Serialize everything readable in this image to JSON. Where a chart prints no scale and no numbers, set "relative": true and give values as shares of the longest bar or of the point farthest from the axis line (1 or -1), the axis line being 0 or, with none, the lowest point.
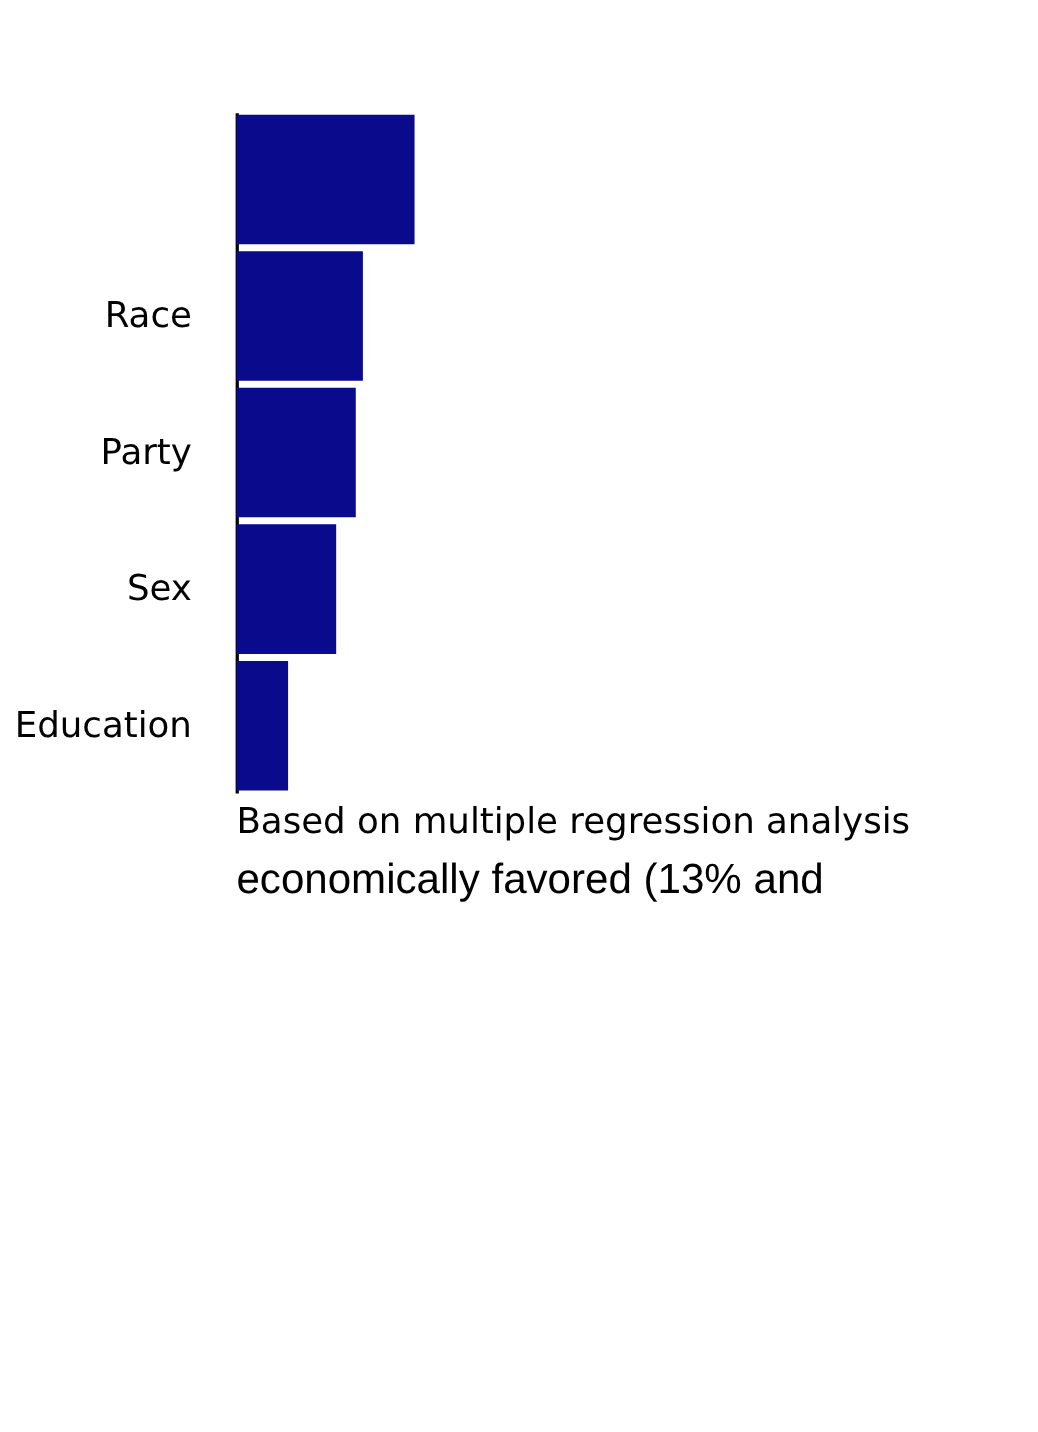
{
  "chart_data": {
    "type": "bar",
    "orientation": "horizontal",
    "relative": true,
    "categories": [
      null,
      "Race",
      "Party",
      "Sex",
      "Education"
    ],
    "values": [
      1,
      0.71,
      0.67,
      0.56,
      0.29
    ],
    "color": "#0a0a8c",
    "annotations": [
      "Based on multiple regression analysis",
      "economically favored (13% and"
    ]
  }
}
